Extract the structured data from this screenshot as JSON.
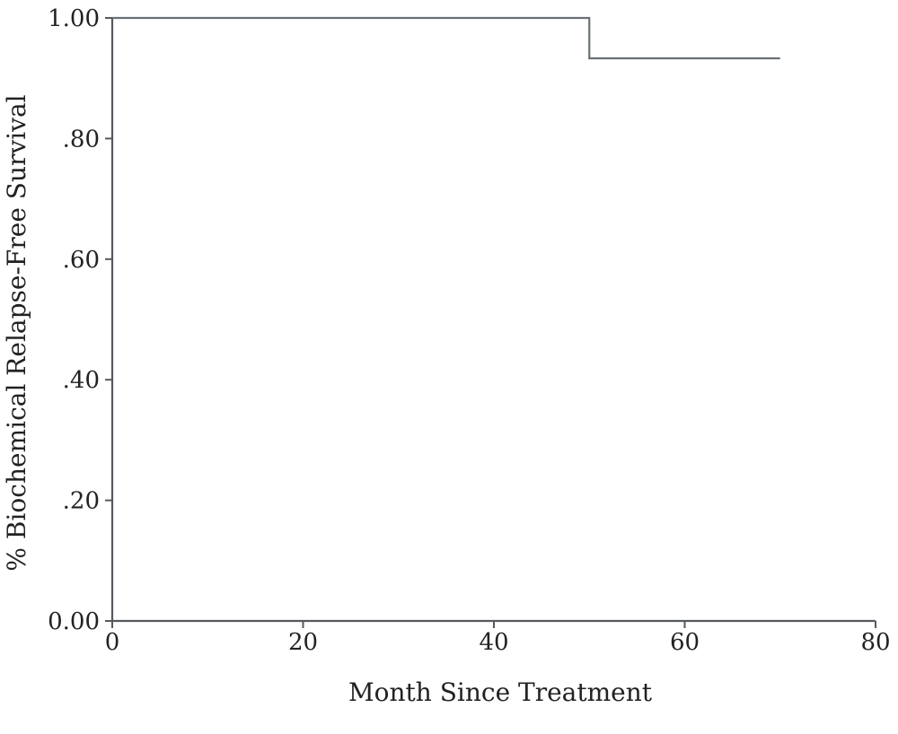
{
  "chart_data": {
    "type": "line",
    "title": "",
    "xlabel": "Month Since Treatment",
    "ylabel": "% Biochemical Relapse-Free Survival",
    "xlim": [
      0,
      80
    ],
    "ylim": [
      0,
      1
    ],
    "x_ticks": [
      0,
      20,
      40,
      60,
      80
    ],
    "x_tick_labels": [
      "0",
      "20",
      "40",
      "60",
      "80"
    ],
    "y_ticks": [
      0,
      0.2,
      0.4,
      0.6,
      0.8,
      1.0
    ],
    "y_tick_labels": [
      "0.00",
      ".20",
      ".40",
      ".60",
      ".80",
      "1.00"
    ],
    "grid": false,
    "legend": "none",
    "series": [
      {
        "step": "post",
        "x": [
          0,
          50,
          70
        ],
        "y": [
          1.0,
          0.933,
          0.933
        ]
      }
    ]
  }
}
